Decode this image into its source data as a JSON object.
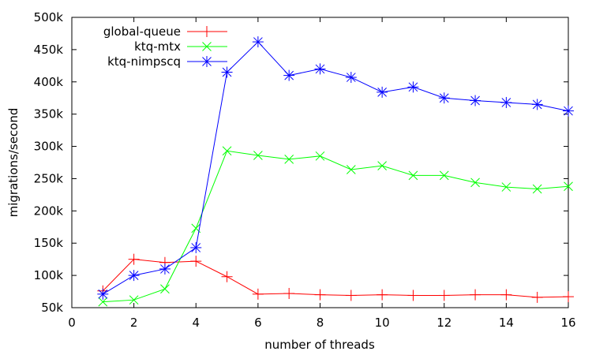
{
  "chart_data": {
    "type": "line",
    "xlabel": "number of threads",
    "ylabel": "migrations/second",
    "xlim": [
      0,
      16
    ],
    "ylim": [
      50000,
      500000
    ],
    "x_ticks": [
      0,
      2,
      4,
      6,
      8,
      10,
      12,
      14,
      16
    ],
    "x_tick_labels": [
      "0",
      "2",
      "4",
      "6",
      "8",
      "10",
      "12",
      "14",
      "16"
    ],
    "y_ticks": [
      50000,
      100000,
      150000,
      200000,
      250000,
      300000,
      350000,
      400000,
      450000,
      500000
    ],
    "y_tick_labels": [
      "50k",
      "100k",
      "150k",
      "200k",
      "250k",
      "300k",
      "350k",
      "400k",
      "450k",
      "500k"
    ],
    "grid": false,
    "legend_position": "top-left",
    "x": [
      1,
      2,
      3,
      4,
      5,
      6,
      7,
      8,
      9,
      10,
      11,
      12,
      13,
      14,
      15,
      16
    ],
    "series": [
      {
        "name": "global-queue",
        "color": "#ff0000",
        "marker": "plus",
        "values": [
          76000,
          125000,
          120000,
          122000,
          98000,
          71000,
          72000,
          70000,
          69000,
          70000,
          69000,
          69000,
          70000,
          70000,
          66000,
          67000
        ]
      },
      {
        "name": "ktq-mtx",
        "color": "#00ff00",
        "marker": "cross",
        "values": [
          59000,
          62000,
          79000,
          173000,
          293000,
          286000,
          280000,
          285000,
          264000,
          270000,
          255000,
          255000,
          244000,
          237000,
          234000,
          238000
        ]
      },
      {
        "name": "ktq-nimpscq",
        "color": "#0000ff",
        "marker": "star",
        "values": [
          71000,
          100000,
          110000,
          143000,
          415000,
          462000,
          410000,
          420000,
          407000,
          384000,
          392000,
          375000,
          371000,
          368000,
          365000,
          355000
        ]
      }
    ]
  }
}
